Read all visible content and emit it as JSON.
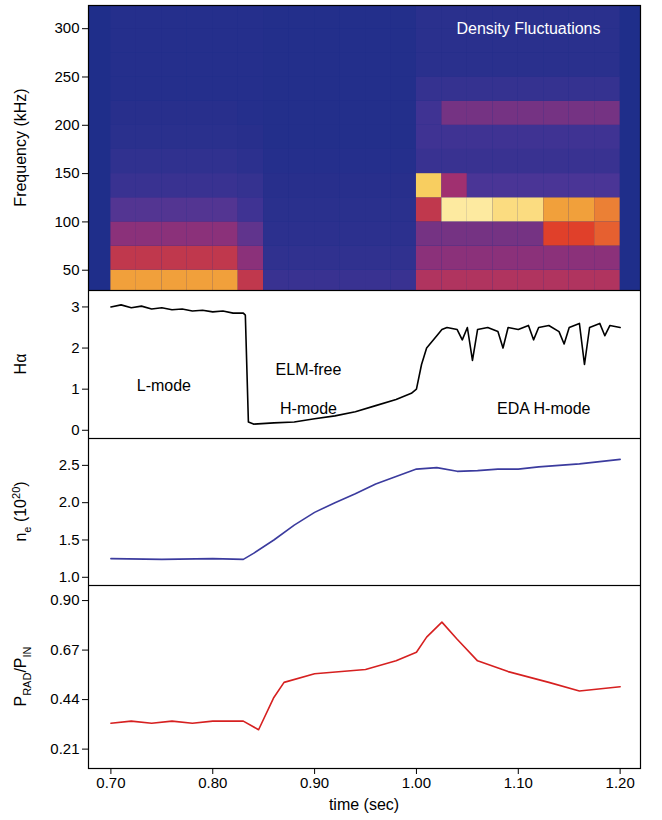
{
  "chart_data": [
    {
      "type": "heatmap",
      "ylabel": [
        {
          "text": "Frequency (kHz)"
        }
      ],
      "xlim": [
        0.678,
        1.22
      ],
      "ylim": [
        29,
        324
      ],
      "yticks": [
        50,
        100,
        150,
        200,
        250,
        300
      ],
      "tick_labels": "y",
      "x_bins": [
        0.7,
        0.725,
        0.75,
        0.775,
        0.8,
        0.825,
        0.85,
        0.875,
        0.9,
        0.925,
        0.95,
        0.975,
        1.0,
        1.025,
        1.05,
        1.075,
        1.1,
        1.125,
        1.15,
        1.175,
        1.2
      ],
      "y_bins": [
        25,
        50,
        75,
        100,
        125,
        150,
        175,
        200,
        225,
        250,
        275,
        300,
        325
      ],
      "zlim": [
        0,
        1
      ],
      "colors": [
        "#1f2e8a",
        "#4a3596",
        "#a03070",
        "#e0402a",
        "#f6c040",
        "#fff8c0"
      ],
      "cells": [
        [
          0.75,
          0.75,
          0.75,
          0.75,
          0.75,
          0.5,
          0.12,
          0.12,
          0.12,
          0.12,
          0.12,
          0.12,
          0.45,
          0.45,
          0.45,
          0.45,
          0.45,
          0.45,
          0.45,
          0.45
        ],
        [
          0.5,
          0.5,
          0.5,
          0.5,
          0.5,
          0.35,
          0.08,
          0.08,
          0.08,
          0.08,
          0.08,
          0.08,
          0.35,
          0.35,
          0.35,
          0.35,
          0.35,
          0.35,
          0.35,
          0.35
        ],
        [
          0.35,
          0.35,
          0.35,
          0.35,
          0.35,
          0.25,
          0.06,
          0.06,
          0.06,
          0.06,
          0.06,
          0.06,
          0.3,
          0.3,
          0.3,
          0.3,
          0.3,
          0.6,
          0.6,
          0.65
        ],
        [
          0.22,
          0.22,
          0.22,
          0.22,
          0.22,
          0.15,
          0.05,
          0.05,
          0.05,
          0.05,
          0.05,
          0.05,
          0.5,
          0.95,
          0.95,
          0.9,
          0.9,
          0.75,
          0.75,
          0.7
        ],
        [
          0.12,
          0.12,
          0.12,
          0.12,
          0.12,
          0.1,
          0.04,
          0.04,
          0.04,
          0.04,
          0.04,
          0.04,
          0.85,
          0.4,
          0.2,
          0.2,
          0.2,
          0.2,
          0.2,
          0.2
        ],
        [
          0.08,
          0.08,
          0.08,
          0.08,
          0.08,
          0.06,
          0.03,
          0.03,
          0.03,
          0.03,
          0.03,
          0.03,
          0.12,
          0.12,
          0.12,
          0.12,
          0.12,
          0.12,
          0.12,
          0.12
        ],
        [
          0.05,
          0.05,
          0.05,
          0.05,
          0.05,
          0.04,
          0.02,
          0.02,
          0.02,
          0.02,
          0.02,
          0.02,
          0.15,
          0.15,
          0.15,
          0.15,
          0.15,
          0.15,
          0.15,
          0.15
        ],
        [
          0.04,
          0.04,
          0.04,
          0.04,
          0.04,
          0.03,
          0.02,
          0.02,
          0.02,
          0.02,
          0.02,
          0.02,
          0.15,
          0.3,
          0.3,
          0.3,
          0.3,
          0.3,
          0.3,
          0.3
        ],
        [
          0.03,
          0.03,
          0.03,
          0.03,
          0.03,
          0.03,
          0.02,
          0.02,
          0.02,
          0.02,
          0.02,
          0.02,
          0.1,
          0.1,
          0.1,
          0.1,
          0.1,
          0.1,
          0.1,
          0.1
        ],
        [
          0.03,
          0.03,
          0.03,
          0.03,
          0.03,
          0.03,
          0.02,
          0.02,
          0.02,
          0.02,
          0.02,
          0.02,
          0.05,
          0.05,
          0.05,
          0.05,
          0.05,
          0.05,
          0.05,
          0.05
        ],
        [
          0.03,
          0.03,
          0.03,
          0.03,
          0.03,
          0.03,
          0.02,
          0.02,
          0.02,
          0.02,
          0.02,
          0.02,
          0.05,
          0.05,
          0.05,
          0.05,
          0.05,
          0.05,
          0.05,
          0.05
        ],
        [
          0.03,
          0.03,
          0.03,
          0.03,
          0.03,
          0.03,
          0.02,
          0.02,
          0.02,
          0.02,
          0.02,
          0.02,
          0.05,
          0.05,
          0.05,
          0.05,
          0.05,
          0.05,
          0.05,
          0.05
        ]
      ],
      "annotations": [
        {
          "text": "Density Fluctuations",
          "x": 1.11,
          "y": 300,
          "color": "#ffffff"
        }
      ]
    },
    {
      "type": "line",
      "ylabel": [
        {
          "text": "Hα"
        }
      ],
      "xlim": [
        0.678,
        1.22
      ],
      "ylim": [
        -0.2,
        3.4
      ],
      "yticks": [
        0,
        1,
        2,
        3
      ],
      "tick_labels": "y",
      "x": [
        0.7,
        0.71,
        0.72,
        0.73,
        0.74,
        0.75,
        0.76,
        0.77,
        0.78,
        0.79,
        0.8,
        0.81,
        0.82,
        0.83,
        0.832,
        0.835,
        0.84,
        0.86,
        0.88,
        0.9,
        0.92,
        0.94,
        0.96,
        0.98,
        0.995,
        1.0,
        1.005,
        1.01,
        1.02,
        1.025,
        1.03,
        1.04,
        1.045,
        1.05,
        1.055,
        1.06,
        1.07,
        1.08,
        1.085,
        1.09,
        1.1,
        1.11,
        1.115,
        1.12,
        1.13,
        1.14,
        1.145,
        1.15,
        1.16,
        1.165,
        1.17,
        1.18,
        1.185,
        1.19,
        1.2
      ],
      "series": [
        {
          "name": "Hα",
          "color": "#000000",
          "values": [
            3.0,
            3.05,
            2.98,
            3.02,
            2.95,
            2.98,
            2.93,
            2.95,
            2.9,
            2.92,
            2.88,
            2.9,
            2.85,
            2.85,
            2.8,
            0.2,
            0.15,
            0.18,
            0.2,
            0.28,
            0.35,
            0.45,
            0.6,
            0.75,
            0.9,
            1.0,
            1.6,
            2.0,
            2.3,
            2.45,
            2.5,
            2.45,
            2.2,
            2.5,
            1.7,
            2.45,
            2.5,
            2.4,
            2.0,
            2.5,
            2.45,
            2.55,
            2.2,
            2.5,
            2.55,
            2.4,
            2.1,
            2.5,
            2.6,
            1.6,
            2.5,
            2.6,
            2.3,
            2.55,
            2.5
          ]
        }
      ],
      "annotations": [
        {
          "text": "L-mode",
          "x": 0.752,
          "y": 1.09,
          "color": "#000000"
        },
        {
          "text": "ELM-free",
          "x": 0.894,
          "y": 1.48,
          "color": "#000000"
        },
        {
          "text": "H-mode",
          "x": 0.894,
          "y": 0.53,
          "color": "#000000"
        },
        {
          "text": "EDA H-mode",
          "x": 1.125,
          "y": 0.53,
          "color": "#000000"
        }
      ]
    },
    {
      "type": "line",
      "ylabel": [
        {
          "text": "n"
        },
        {
          "text": "e",
          "sub": true
        },
        {
          "text": " (10"
        },
        {
          "text": "20",
          "sup": true
        },
        {
          "text": ")"
        }
      ],
      "xlim": [
        0.678,
        1.22
      ],
      "ylim": [
        0.89,
        2.86
      ],
      "yticks": [
        {
          "value": 1,
          "label": "1.0"
        },
        {
          "value": 1.5,
          "label": "1.5"
        },
        {
          "value": 2,
          "label": "2.0"
        },
        {
          "value": 2.5,
          "label": "2.5"
        }
      ],
      "tick_labels": "y",
      "x": [
        0.7,
        0.75,
        0.8,
        0.83,
        0.84,
        0.86,
        0.88,
        0.9,
        0.92,
        0.94,
        0.96,
        0.98,
        1.0,
        1.02,
        1.04,
        1.06,
        1.08,
        1.1,
        1.12,
        1.14,
        1.16,
        1.18,
        1.2
      ],
      "series": [
        {
          "name": "ne",
          "color": "#3b3b9e",
          "values": [
            1.25,
            1.24,
            1.25,
            1.24,
            1.32,
            1.5,
            1.7,
            1.87,
            2.0,
            2.12,
            2.25,
            2.35,
            2.45,
            2.47,
            2.42,
            2.43,
            2.45,
            2.45,
            2.48,
            2.5,
            2.52,
            2.55,
            2.58
          ]
        }
      ]
    },
    {
      "type": "line",
      "ylabel": [
        {
          "text": "P"
        },
        {
          "text": "RAD",
          "sub": true
        },
        {
          "text": "/P"
        },
        {
          "text": "IN",
          "sub": true
        }
      ],
      "xlabel": "time (sec)",
      "xlim": [
        0.678,
        1.22
      ],
      "xticks": [
        {
          "value": 0.7,
          "label": "0.70"
        },
        {
          "value": 0.8,
          "label": "0.80"
        },
        {
          "value": 0.9,
          "label": "0.90"
        },
        {
          "value": 1.0,
          "label": "1.00"
        },
        {
          "value": 1.1,
          "label": "1.10"
        },
        {
          "value": 1.2,
          "label": "1.20"
        }
      ],
      "ylim": [
        0.12,
        0.97
      ],
      "yticks": [
        0.21,
        0.44,
        0.67,
        {
          "value": 0.9,
          "label": "0.90"
        }
      ],
      "x": [
        0.7,
        0.72,
        0.74,
        0.76,
        0.78,
        0.8,
        0.82,
        0.83,
        0.845,
        0.86,
        0.87,
        0.9,
        0.95,
        0.98,
        1.0,
        1.01,
        1.025,
        1.04,
        1.06,
        1.09,
        1.13,
        1.16,
        1.2
      ],
      "series": [
        {
          "name": "PRAD/PIN",
          "color": "#d62020",
          "values": [
            0.33,
            0.34,
            0.33,
            0.34,
            0.33,
            0.34,
            0.34,
            0.34,
            0.3,
            0.45,
            0.52,
            0.56,
            0.58,
            0.62,
            0.66,
            0.73,
            0.8,
            0.72,
            0.62,
            0.57,
            0.52,
            0.48,
            0.5
          ]
        }
      ]
    }
  ]
}
